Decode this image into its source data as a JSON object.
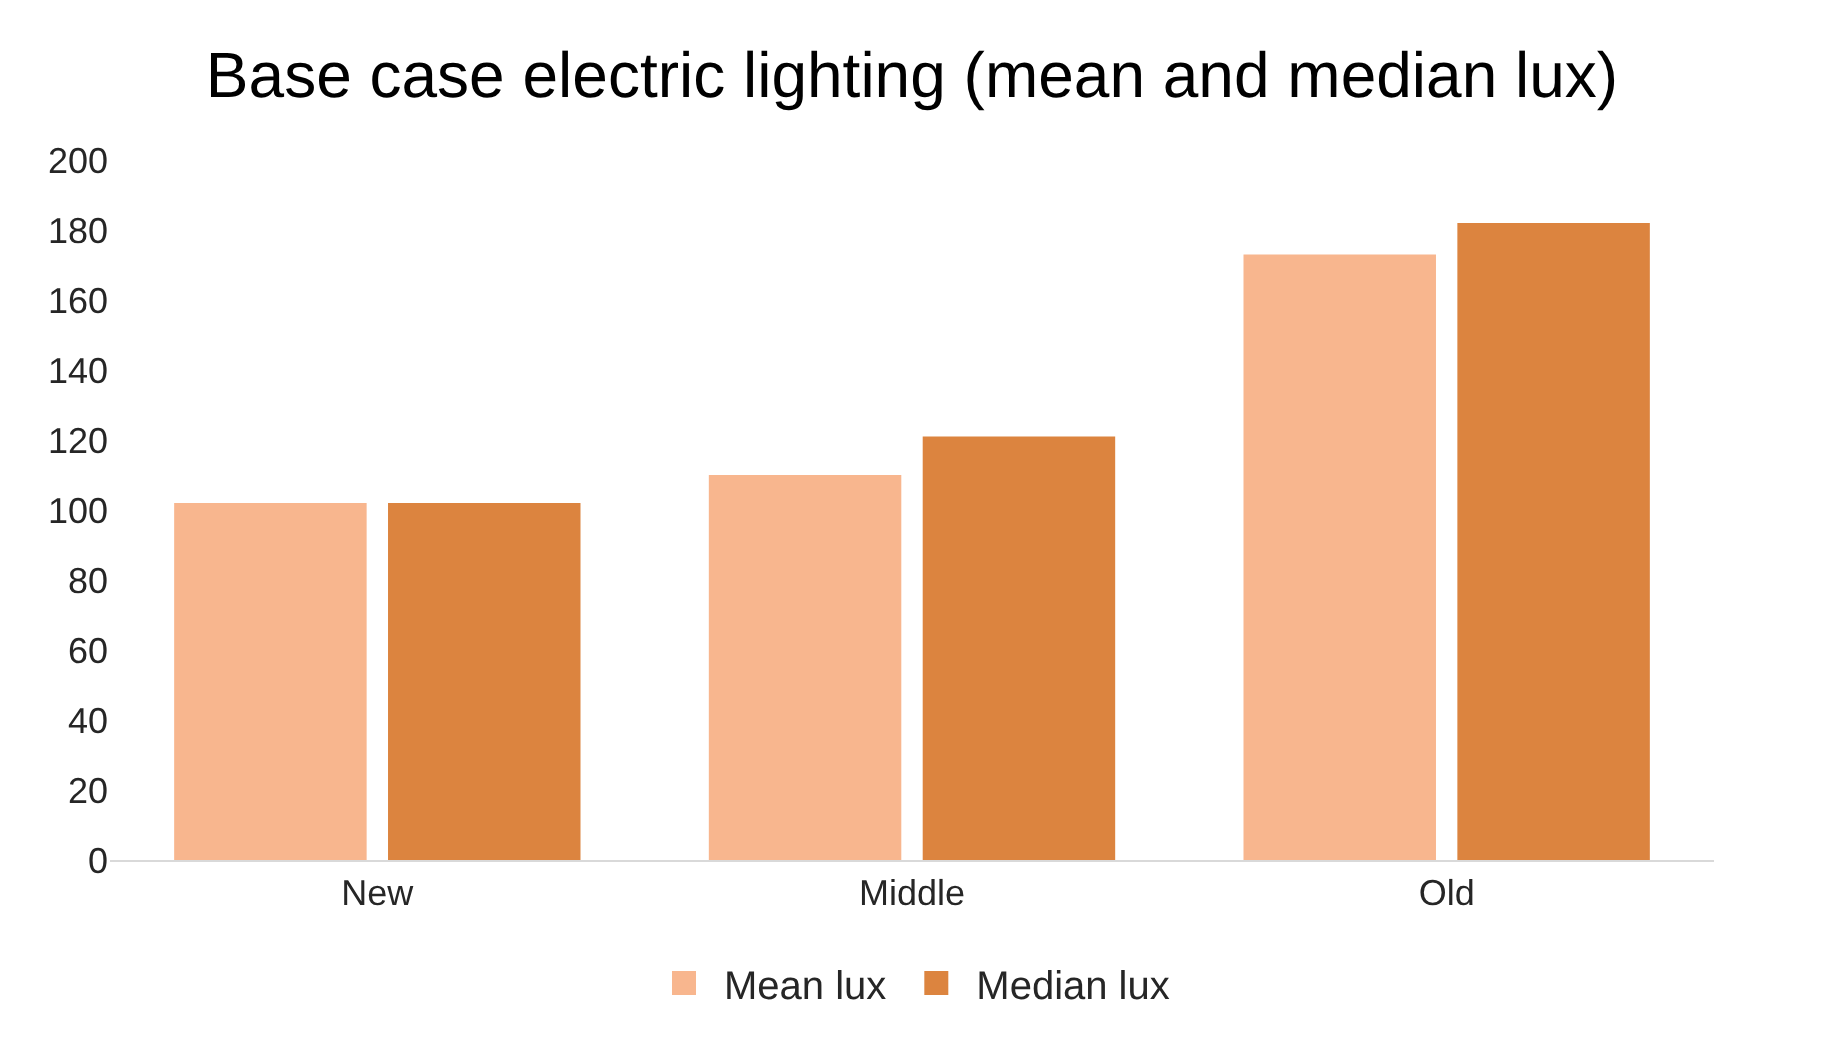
{
  "chart_data": {
    "type": "bar",
    "title": "Base case electric lighting (mean and median lux)",
    "categories": [
      "New",
      "Middle",
      "Old"
    ],
    "series": [
      {
        "name": "Mean lux",
        "color": "#f8b68e",
        "values": [
          102,
          110,
          173
        ]
      },
      {
        "name": "Median lux",
        "color": "#dc843f",
        "values": [
          102,
          121,
          182
        ]
      }
    ],
    "ylim": [
      0,
      200
    ],
    "yticks": [
      0,
      20,
      40,
      60,
      80,
      100,
      120,
      140,
      160,
      180,
      200
    ],
    "grid": false,
    "legend": "bottom"
  }
}
